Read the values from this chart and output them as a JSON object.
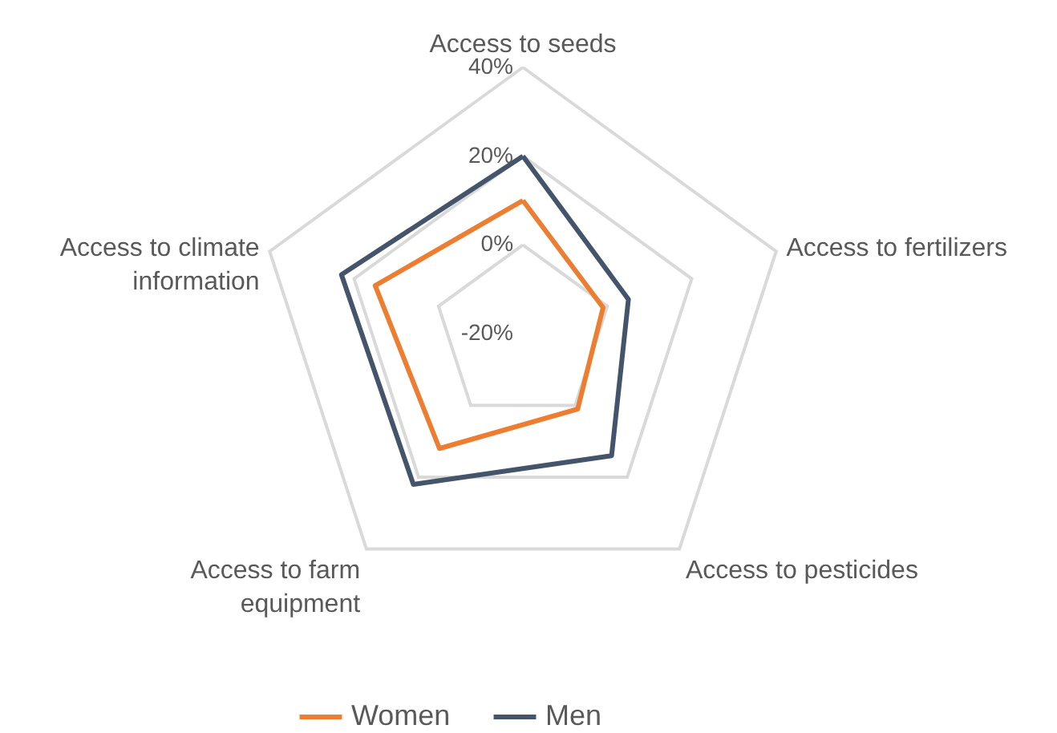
{
  "chart_data": {
    "type": "radar",
    "categories": [
      "Access to seeds",
      "Access to fertilizers",
      "Access to pesticides",
      "Access to farm equipment",
      "Access to climate information"
    ],
    "series": [
      {
        "name": "Women",
        "color": "#ed7d31",
        "values": [
          10,
          -1,
          1,
          12,
          15
        ]
      },
      {
        "name": "Men",
        "color": "#44546a",
        "values": [
          20,
          5,
          14,
          22,
          23
        ]
      }
    ],
    "ylim": [
      -20,
      40
    ],
    "yticks": [
      {
        "value": -20,
        "label": "-20%"
      },
      {
        "value": 0,
        "label": "0%"
      },
      {
        "value": 20,
        "label": "20%"
      },
      {
        "value": 40,
        "label": "40%"
      }
    ],
    "grid": true,
    "legend": "bottom",
    "marker": "none",
    "line_style": "solid"
  }
}
